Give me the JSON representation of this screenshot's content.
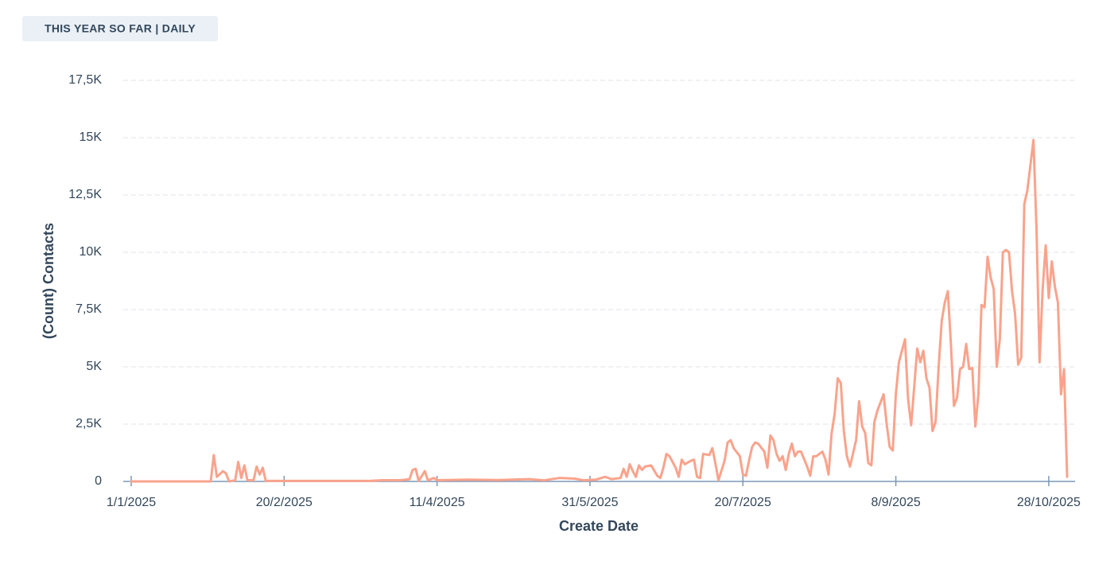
{
  "chart_data": {
    "type": "line",
    "title": "THIS YEAR SO FAR | DAILY",
    "x_label": "Create Date",
    "y_label": "(Count) Contacts",
    "color": "#f9a38c",
    "grid": true,
    "xlim": [
      "1/1/2025",
      "3/11/2025"
    ],
    "xticks": [
      "1/1/2025",
      "20/2/2025",
      "11/4/2025",
      "31/5/2025",
      "20/7/2025",
      "8/9/2025",
      "28/10/2025"
    ],
    "ylim": [
      0,
      17500
    ],
    "yticks": [
      0,
      {
        "value": 2500,
        "label": "2,5K"
      },
      {
        "value": 5000,
        "label": "5K"
      },
      {
        "value": 7500,
        "label": "7,5K"
      },
      {
        "value": 10000,
        "label": "10K"
      },
      {
        "value": 12500,
        "label": "12,5K"
      },
      {
        "value": 15000,
        "label": "15K"
      },
      {
        "value": 17500,
        "label": "17,5K"
      }
    ],
    "x": [
      "1/1/2025",
      "27/1/2025",
      "28/1/2025",
      "29/1/2025",
      "31/1/2025",
      "1/2/2025",
      "2/2/2025",
      "4/2/2025",
      "5/2/2025",
      "6/2/2025",
      "7/2/2025",
      "8/2/2025",
      "10/2/2025",
      "11/2/2025",
      "12/2/2025",
      "13/2/2025",
      "14/2/2025",
      "20/3/2025",
      "24/3/2025",
      "30/3/2025",
      "2/4/2025",
      "3/4/2025",
      "4/4/2025",
      "5/4/2025",
      "7/4/2025",
      "8/4/2025",
      "10/4/2025",
      "11/4/2025",
      "21/4/2025",
      "1/5/2025",
      "11/5/2025",
      "16/5/2025",
      "21/5/2025",
      "26/5/2025",
      "29/5/2025",
      "2/6/2025",
      "5/6/2025",
      "7/6/2025",
      "10/6/2025",
      "11/6/2025",
      "12/6/2025",
      "13/6/2025",
      "14/6/2025",
      "15/6/2025",
      "16/6/2025",
      "17/6/2025",
      "18/6/2025",
      "20/6/2025",
      "22/6/2025",
      "23/6/2025",
      "24/6/2025",
      "25/6/2025",
      "26/6/2025",
      "28/6/2025",
      "29/6/2025",
      "30/6/2025",
      "1/7/2025",
      "3/7/2025",
      "4/7/2025",
      "5/7/2025",
      "6/7/2025",
      "7/7/2025",
      "9/7/2025",
      "10/7/2025",
      "11/7/2025",
      "12/7/2025",
      "14/7/2025",
      "15/7/2025",
      "16/7/2025",
      "17/7/2025",
      "19/7/2025",
      "20/7/2025",
      "21/7/2025",
      "22/7/2025",
      "23/7/2025",
      "24/7/2025",
      "25/7/2025",
      "27/7/2025",
      "28/7/2025",
      "29/7/2025",
      "30/7/2025",
      "31/7/2025",
      "1/8/2025",
      "2/8/2025",
      "3/8/2025",
      "4/8/2025",
      "5/8/2025",
      "6/8/2025",
      "7/8/2025",
      "8/8/2025",
      "10/8/2025",
      "11/8/2025",
      "12/8/2025",
      "13/8/2025",
      "15/8/2025",
      "16/8/2025",
      "17/8/2025",
      "18/8/2025",
      "19/8/2025",
      "20/8/2025",
      "21/8/2025",
      "22/8/2025",
      "23/8/2025",
      "24/8/2025",
      "26/8/2025",
      "27/8/2025",
      "28/8/2025",
      "29/8/2025",
      "30/8/2025",
      "31/8/2025",
      "1/9/2025",
      "2/9/2025",
      "4/9/2025",
      "5/9/2025",
      "6/9/2025",
      "7/9/2025",
      "8/9/2025",
      "9/9/2025",
      "11/9/2025",
      "12/9/2025",
      "13/9/2025",
      "14/9/2025",
      "15/9/2025",
      "16/9/2025",
      "17/9/2025",
      "18/9/2025",
      "19/9/2025",
      "20/9/2025",
      "21/9/2025",
      "22/9/2025",
      "23/9/2025",
      "24/9/2025",
      "25/9/2025",
      "26/9/2025",
      "27/9/2025",
      "28/9/2025",
      "29/9/2025",
      "30/9/2025",
      "1/10/2025",
      "2/10/2025",
      "3/10/2025",
      "4/10/2025",
      "5/10/2025",
      "6/10/2025",
      "7/10/2025",
      "8/10/2025",
      "9/10/2025",
      "10/10/2025",
      "11/10/2025",
      "12/10/2025",
      "13/10/2025",
      "14/10/2025",
      "15/10/2025",
      "16/10/2025",
      "17/10/2025",
      "18/10/2025",
      "19/10/2025",
      "20/10/2025",
      "21/10/2025",
      "23/10/2025",
      "24/10/2025",
      "25/10/2025",
      "26/10/2025",
      "27/10/2025",
      "28/10/2025",
      "29/10/2025",
      "30/10/2025",
      "31/10/2025",
      "1/11/2025",
      "2/11/2025",
      "3/11/2025"
    ],
    "values": [
      0,
      0,
      1150,
      200,
      450,
      350,
      0,
      50,
      850,
      150,
      700,
      50,
      50,
      650,
      300,
      600,
      20,
      20,
      50,
      50,
      100,
      500,
      550,
      20,
      450,
      50,
      150,
      50,
      80,
      60,
      100,
      50,
      150,
      120,
      50,
      80,
      200,
      100,
      150,
      550,
      200,
      750,
      450,
      200,
      700,
      500,
      650,
      700,
      250,
      150,
      600,
      1200,
      1100,
      600,
      200,
      950,
      750,
      900,
      950,
      200,
      150,
      1200,
      1150,
      1450,
      800,
      50,
      900,
      1700,
      1800,
      1450,
      1100,
      300,
      250,
      900,
      1500,
      1700,
      1650,
      1300,
      600,
      2000,
      1800,
      1200,
      900,
      1100,
      500,
      1200,
      1650,
      1100,
      1300,
      1300,
      650,
      250,
      1100,
      1100,
      1300,
      950,
      300,
      2100,
      2950,
      4500,
      4300,
      2200,
      1100,
      650,
      1800,
      3500,
      2400,
      2100,
      800,
      700,
      2600,
      3100,
      3800,
      2500,
      1500,
      1350,
      3800,
      5200,
      6200,
      3600,
      2450,
      4100,
      5800,
      5200,
      5700,
      4500,
      4100,
      2200,
      2600,
      5000,
      7000,
      7800,
      8300,
      6000,
      3300,
      3650,
      4900,
      5000,
      6000,
      4900,
      4950,
      2400,
      3800,
      7700,
      7600,
      9800,
      8900,
      8400,
      5000,
      6200,
      10000,
      10100,
      10000,
      8300,
      7300,
      5100,
      5400,
      12100,
      12700,
      14900,
      11000,
      5200,
      8400,
      10300,
      8000,
      9600,
      8500,
      7800,
      3800,
      4900,
      200
    ]
  }
}
